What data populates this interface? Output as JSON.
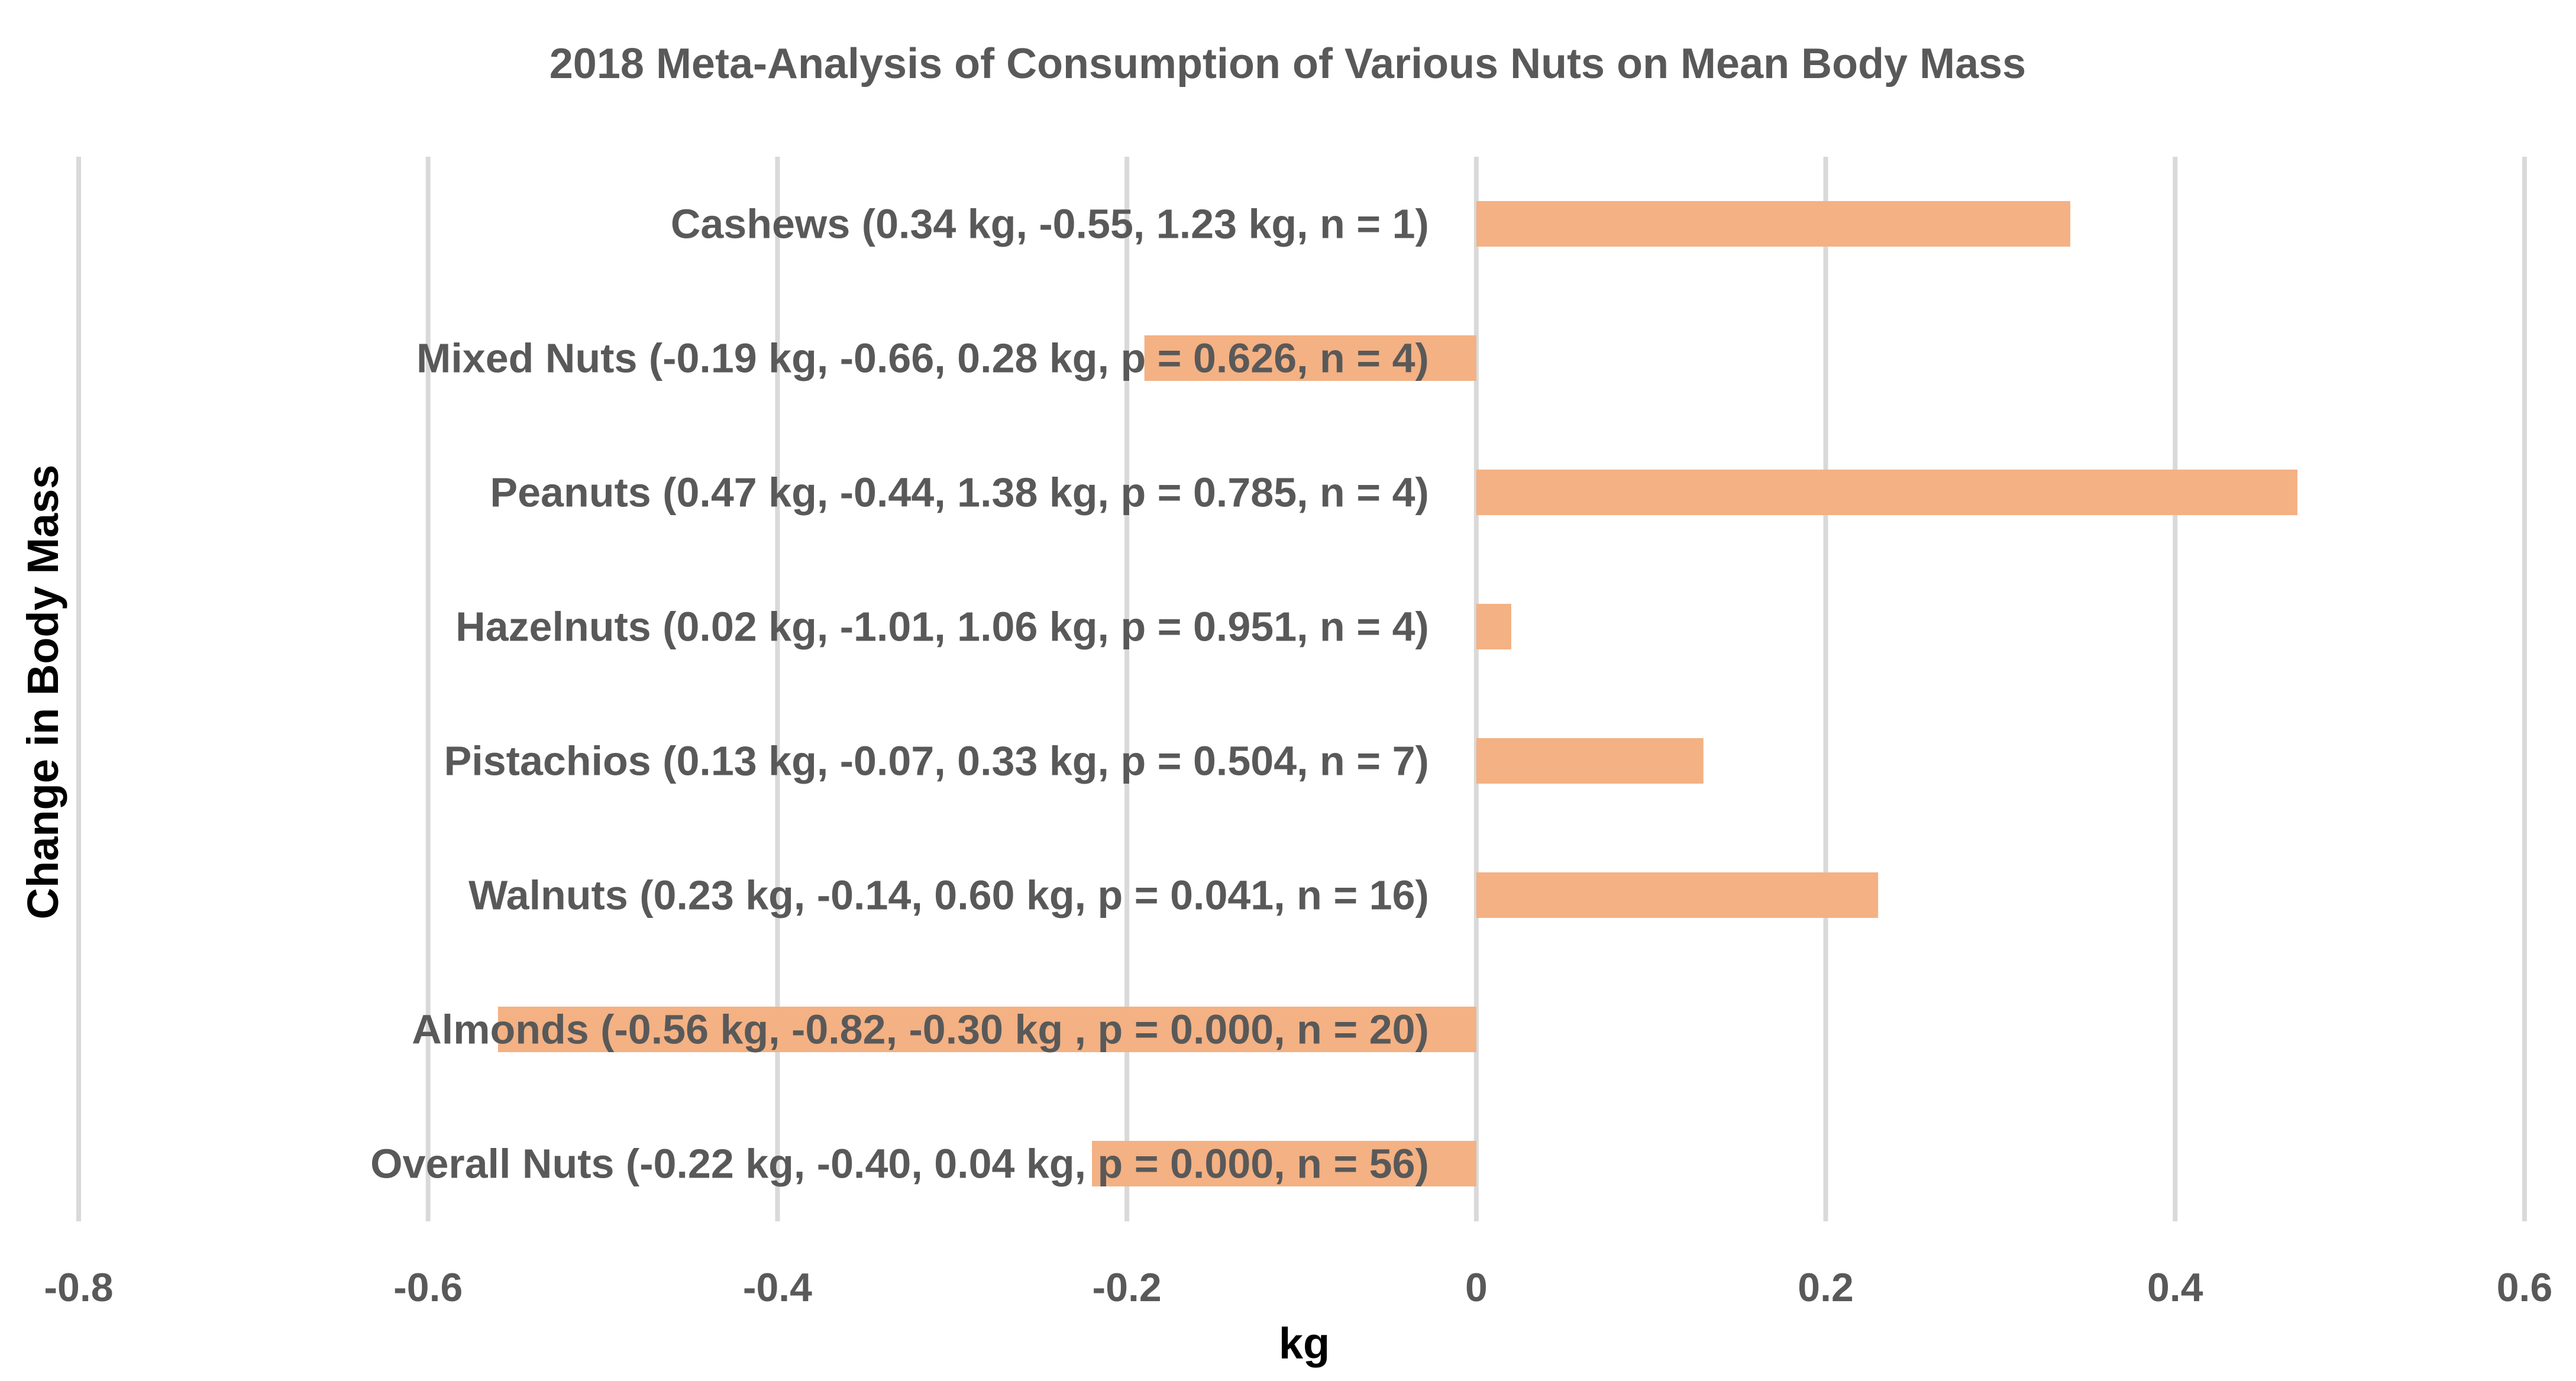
{
  "chart_data": {
    "type": "bar",
    "orientation": "horizontal",
    "title": "2018 Meta-Analysis of Consumption of Various Nuts on Mean Body Mass",
    "xlabel": "kg",
    "ylabel": "Change in Body Mass",
    "xlim": [
      -0.8,
      0.6
    ],
    "xticks": [
      -0.8,
      -0.6,
      -0.4,
      -0.2,
      0,
      0.2,
      0.4,
      0.6
    ],
    "grid": "vertical",
    "bar_color": "#f4b183",
    "categories": [
      "Cashews (0.34 kg, -0.55, 1.23 kg,  n = 1)",
      "Mixed Nuts (-0.19 kg, -0.66, 0.28 kg,  p = 0.626, n = 4)",
      "Peanuts (0.47 kg, -0.44, 1.38 kg, p = 0.785, n = 4)",
      "Hazelnuts (0.02 kg, -1.01, 1.06 kg, p = 0.951, n = 4)",
      "Pistachios (0.13 kg, -0.07,  0.33 kg, p = 0.504, n = 7)",
      "Walnuts (0.23 kg, -0.14, 0.60 kg,  p = 0.041, n = 16)",
      "Almonds (-0.56 kg, -0.82, -0.30 kg ,  p = 0.000, n = 20)",
      "Overall Nuts (-0.22 kg, -0.40, 0.04 kg, p = 0.000, n = 56)"
    ],
    "values": [
      0.34,
      -0.19,
      0.47,
      0.02,
      0.13,
      0.23,
      -0.56,
      -0.22
    ]
  }
}
